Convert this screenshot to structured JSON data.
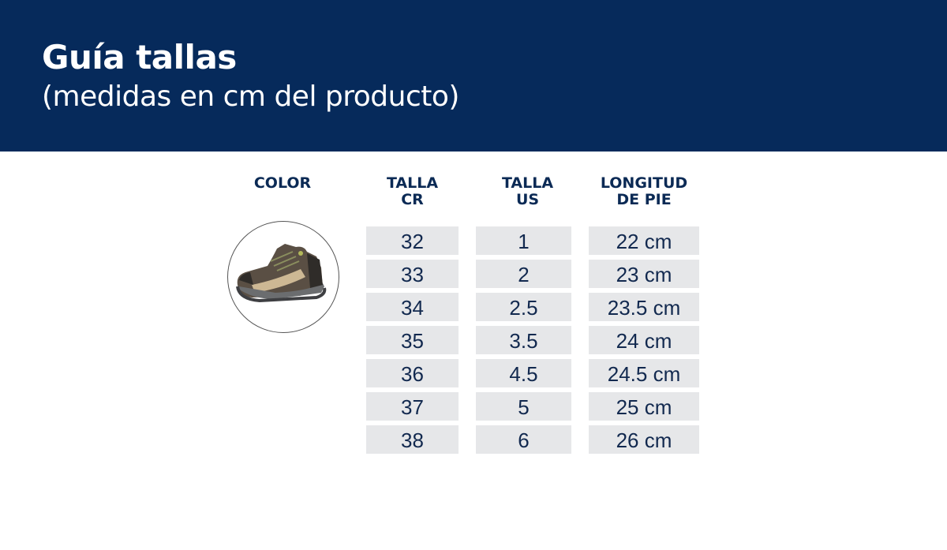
{
  "header": {
    "title": "Guía tallas",
    "subtitle": "(medidas en cm del producto)",
    "background": "#062a5b"
  },
  "table": {
    "columns": [
      {
        "line1": "COLOR",
        "line2": ""
      },
      {
        "line1": "TALLA",
        "line2": "CR"
      },
      {
        "line1": "TALLA",
        "line2": "US"
      },
      {
        "line1": "LONGITUD",
        "line2": "DE PIE"
      }
    ],
    "color_image": "brown-hiking-boot",
    "rows": [
      {
        "cr": "32",
        "us": "1",
        "length": "22 cm"
      },
      {
        "cr": "33",
        "us": "2",
        "length": "23 cm"
      },
      {
        "cr": "34",
        "us": "2.5",
        "length": "23.5 cm"
      },
      {
        "cr": "35",
        "us": "3.5",
        "length": "24 cm"
      },
      {
        "cr": "36",
        "us": "4.5",
        "length": "24.5 cm"
      },
      {
        "cr": "37",
        "us": "5",
        "length": "25 cm"
      },
      {
        "cr": "38",
        "us": "6",
        "length": "26 cm"
      }
    ]
  }
}
